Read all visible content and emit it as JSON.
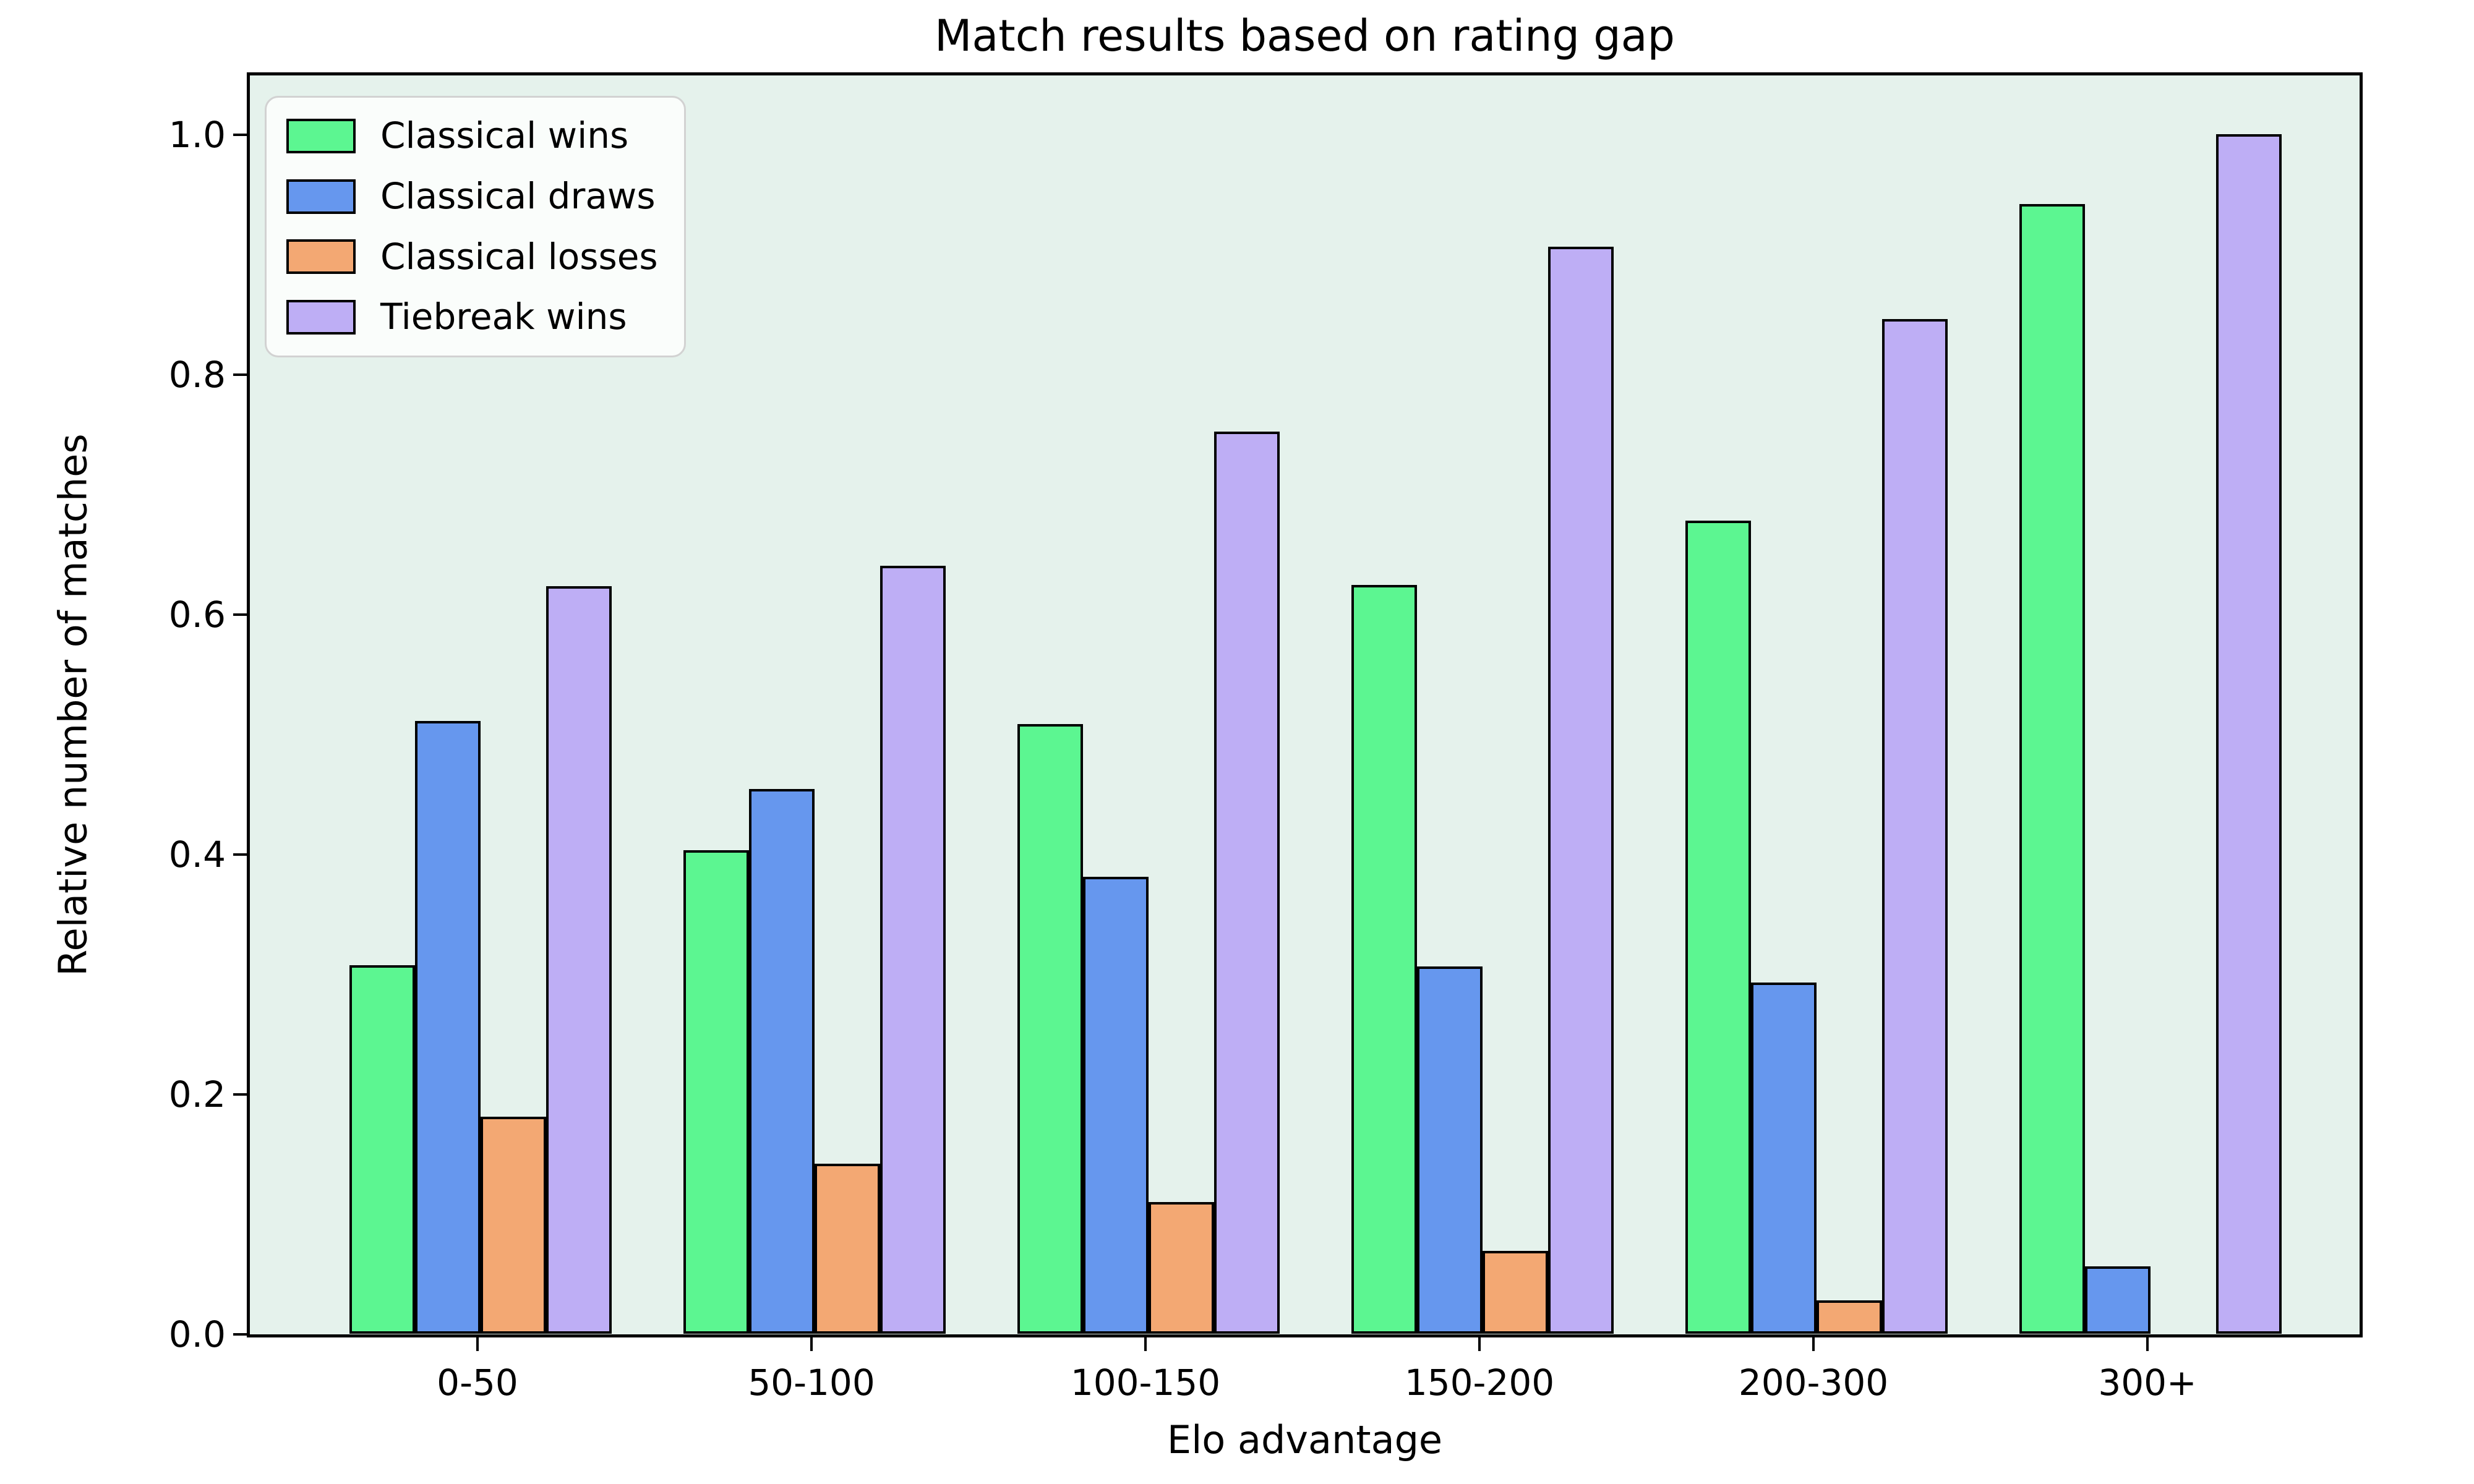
{
  "chart_data": {
    "type": "bar",
    "title": "Match results based on rating gap",
    "xlabel": "Elo advantage",
    "ylabel": "Relative number of matches",
    "categories": [
      "0-50",
      "50-100",
      "100-150",
      "150-200",
      "200-300",
      "300+"
    ],
    "series": [
      {
        "name": "Classical wins",
        "color": "#5cf691",
        "values": [
          0.307,
          0.403,
          0.508,
          0.624,
          0.678,
          0.942
        ]
      },
      {
        "name": "Classical draws",
        "color": "#6697ee",
        "values": [
          0.511,
          0.454,
          0.381,
          0.306,
          0.293,
          0.056
        ]
      },
      {
        "name": "Classical losses",
        "color": "#f3a873",
        "values": [
          0.181,
          0.142,
          0.11,
          0.069,
          0.028,
          0
        ]
      },
      {
        "name": "Tiebreak wins",
        "color": "#beaef5",
        "values": [
          0.623,
          0.64,
          0.752,
          0.906,
          0.846,
          1.0
        ]
      }
    ],
    "yticks": [
      "0.0",
      "0.2",
      "0.4",
      "0.6",
      "0.8",
      "1.0"
    ],
    "ylim": [
      0,
      1.052
    ],
    "grid": false,
    "legend_position": "upper left",
    "plot_background": "#e5f2ec",
    "bar_edge_color": "#000000",
    "figure_background": "#ffffff"
  }
}
